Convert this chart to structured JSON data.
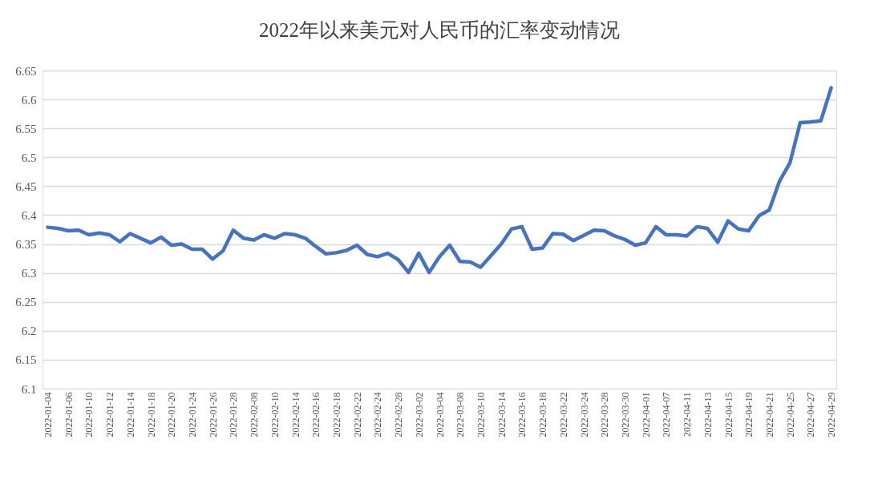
{
  "chart_data": {
    "type": "line",
    "title": "2022年以来美元对人民币的汇率变动情况",
    "categories": [
      "2022-01-04",
      null,
      "2022-01-06",
      null,
      "2022-01-10",
      null,
      "2022-01-12",
      null,
      "2022-01-14",
      null,
      "2022-01-18",
      null,
      "2022-01-20",
      null,
      "2022-01-24",
      null,
      "2022-01-26",
      null,
      "2022-01-28",
      null,
      "2022-02-08",
      null,
      "2022-02-10",
      null,
      "2022-02-14",
      null,
      "2022-02-16",
      null,
      "2022-02-18",
      null,
      "2022-02-22",
      null,
      "2022-02-24",
      null,
      "2022-02-28",
      null,
      "2022-03-02",
      null,
      "2022-03-04",
      null,
      "2022-03-08",
      null,
      "2022-03-10",
      null,
      "2022-03-14",
      null,
      "2022-03-16",
      null,
      "2022-03-18",
      null,
      "2022-03-22",
      null,
      "2022-03-24",
      null,
      "2022-03-28",
      null,
      "2022-03-30",
      null,
      "2022-04-01",
      null,
      "2022-04-07",
      null,
      "2022-04-11",
      null,
      "2022-04-13",
      null,
      "2022-04-15",
      null,
      "2022-04-19",
      null,
      "2022-04-21",
      null,
      "2022-04-25",
      null,
      "2022-04-27",
      null,
      "2022-04-29"
    ],
    "series": [
      {
        "color": "#4472c4",
        "values": [
          6.379,
          6.377,
          6.373,
          6.374,
          6.366,
          6.369,
          6.366,
          6.354,
          6.368,
          6.36,
          6.352,
          6.362,
          6.348,
          6.35,
          6.341,
          6.341,
          6.324,
          6.338,
          6.374,
          6.36,
          6.357,
          6.366,
          6.36,
          6.368,
          6.366,
          6.36,
          6.346,
          6.333,
          6.335,
          6.339,
          6.348,
          6.332,
          6.328,
          6.334,
          6.323,
          6.301,
          6.334,
          6.301,
          6.328,
          6.348,
          6.32,
          6.319,
          6.31,
          6.33,
          6.35,
          6.376,
          6.38,
          6.341,
          6.343,
          6.368,
          6.367,
          6.356,
          6.365,
          6.374,
          6.373,
          6.364,
          6.358,
          6.348,
          6.352,
          6.38,
          6.366,
          6.366,
          6.364,
          6.38,
          6.377,
          6.353,
          6.39,
          6.376,
          6.373,
          6.399,
          6.409,
          6.459,
          6.49,
          6.56,
          6.561,
          6.563,
          6.62
        ]
      }
    ],
    "ylim": [
      6.1,
      6.65
    ],
    "yticks": [
      6.1,
      6.15,
      6.2,
      6.25,
      6.3,
      6.35,
      6.4,
      6.45,
      6.5,
      6.55,
      6.6,
      6.65
    ],
    "grid": "y",
    "legend": false,
    "marker": "none",
    "line_style": "solid"
  }
}
